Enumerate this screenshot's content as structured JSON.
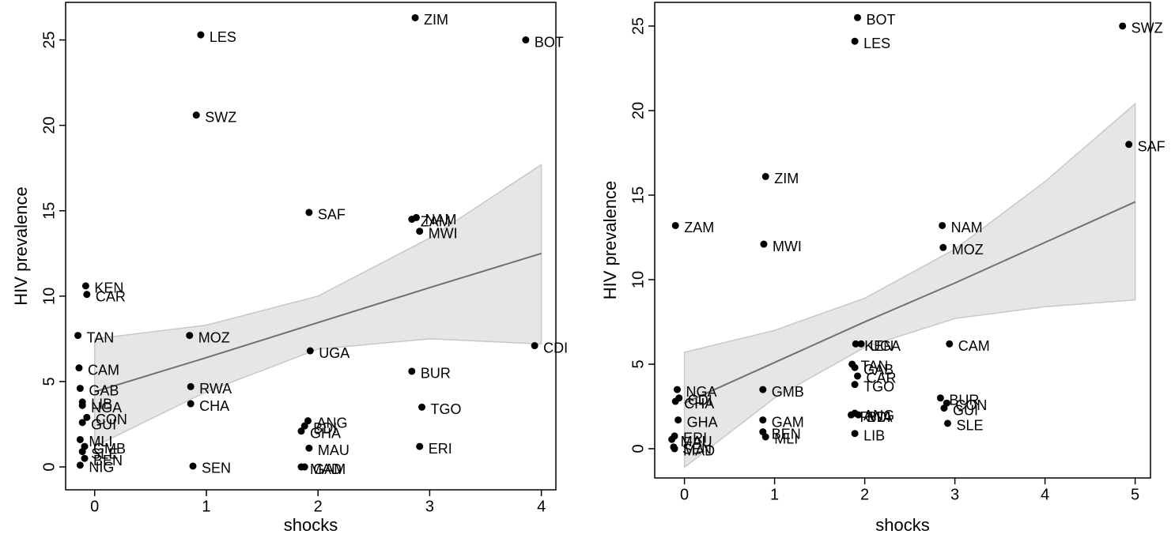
{
  "chart_data": [
    {
      "type": "scatter",
      "xlabel": "shocks",
      "ylabel": "HIV prevalence",
      "color": "#000000",
      "xlim": [
        -0.26,
        4.13
      ],
      "ylim": [
        -1.34,
        27.2
      ],
      "xticks": [
        0,
        1,
        2,
        3,
        4
      ],
      "yticks": [
        0,
        5,
        10,
        15,
        20,
        25
      ],
      "labels": [
        "ZIM",
        "LES",
        "BOT",
        "SWZ",
        "SAF",
        "NAM",
        "ZAM",
        "MWI",
        "KEN",
        "CAR",
        "TAN",
        "MOZ",
        "UGA",
        "CDI",
        "CAM",
        "BUR",
        "RWA",
        "GAB",
        "CHA",
        "LIB",
        "NGA",
        "TGO",
        "CON",
        "GUI",
        "ANG",
        "BDI",
        "GHA",
        "MAU",
        "ERI",
        "MLI",
        "GMB",
        "SLE",
        "BEN",
        "NIG",
        "SEN",
        "MAD",
        "GAM"
      ],
      "x": [
        2.87,
        0.95,
        3.86,
        0.91,
        1.92,
        2.88,
        2.84,
        2.91,
        -0.08,
        -0.07,
        -0.15,
        0.85,
        1.93,
        3.94,
        -0.14,
        2.84,
        0.86,
        -0.13,
        0.86,
        -0.11,
        -0.11,
        2.93,
        -0.07,
        -0.11,
        1.91,
        1.88,
        1.85,
        1.92,
        2.91,
        -0.13,
        -0.09,
        -0.11,
        -0.09,
        -0.13,
        0.88,
        1.85,
        1.88
      ],
      "values": [
        26.3,
        25.3,
        25.0,
        20.6,
        14.9,
        14.6,
        14.5,
        13.8,
        10.6,
        10.1,
        7.7,
        7.7,
        6.8,
        7.1,
        5.8,
        5.6,
        4.7,
        4.6,
        3.7,
        3.8,
        3.6,
        3.5,
        2.9,
        2.6,
        2.7,
        2.4,
        2.1,
        1.1,
        1.2,
        1.6,
        1.2,
        0.9,
        0.5,
        0.1,
        0.05,
        0.0,
        0.0
      ],
      "fit": {
        "color": "#707070",
        "band_color": "#e6e6e6",
        "x": [
          0,
          1,
          2,
          3,
          4
        ],
        "values": [
          4.4,
          6.4,
          8.45,
          10.5,
          12.5
        ],
        "lower": [
          1.2,
          4.4,
          6.9,
          7.5,
          7.2
        ],
        "upper": [
          7.5,
          8.3,
          10.0,
          13.4,
          17.7
        ]
      }
    },
    {
      "type": "scatter",
      "xlabel": "shocks",
      "ylabel": "HIV prevalence",
      "color": "#000000",
      "xlim": [
        -0.33,
        5.17
      ],
      "ylim": [
        -1.73,
        26.4
      ],
      "xticks": [
        0,
        1,
        2,
        3,
        4,
        5
      ],
      "yticks": [
        0,
        5,
        10,
        15,
        20,
        25
      ],
      "labels": [
        "BOT",
        "LES",
        "SWZ",
        "SAF",
        "ZIM",
        "ZAM",
        "MWI",
        "NAM",
        "MOZ",
        "KEN",
        "UGA",
        "CAM",
        "TAN",
        "GAB",
        "CAR",
        "TGO",
        "NGA",
        "GMB",
        "BUR",
        "CDI",
        "CON",
        "GUI",
        "CHA",
        "GHA",
        "GAM",
        "ANG",
        "RWA",
        "BDI",
        "SLE",
        "BEN",
        "MLI",
        "LIB",
        "ERI",
        "MAU",
        "SEN",
        "MAD"
      ],
      "x": [
        1.92,
        1.89,
        4.86,
        4.93,
        0.9,
        -0.1,
        0.88,
        2.86,
        2.87,
        1.9,
        1.96,
        2.94,
        1.86,
        1.89,
        1.92,
        1.89,
        -0.08,
        0.87,
        2.84,
        -0.06,
        2.91,
        2.88,
        -0.1,
        -0.07,
        0.87,
        1.89,
        1.85,
        1.93,
        2.92,
        0.87,
        0.9,
        1.89,
        -0.11,
        -0.14,
        -0.12,
        -0.11
      ],
      "values": [
        25.5,
        24.1,
        25.0,
        18.0,
        16.1,
        13.2,
        12.1,
        13.2,
        11.9,
        6.2,
        6.2,
        6.2,
        5.0,
        4.8,
        4.3,
        3.8,
        3.5,
        3.5,
        3.0,
        3.0,
        2.7,
        2.4,
        2.8,
        1.7,
        1.7,
        2.1,
        2.0,
        2.0,
        1.5,
        1.0,
        0.7,
        0.9,
        0.75,
        0.55,
        0.1,
        0.0
      ],
      "fit": {
        "color": "#707070",
        "band_color": "#e6e6e6",
        "x": [
          0,
          1,
          2,
          3,
          4,
          5
        ],
        "values": [
          2.7,
          5.1,
          7.5,
          9.8,
          12.2,
          14.6
        ],
        "lower": [
          -1.1,
          3.0,
          6.0,
          7.7,
          8.4,
          8.8
        ],
        "upper": [
          5.7,
          7.0,
          8.9,
          11.8,
          15.8,
          20.4
        ]
      }
    }
  ]
}
